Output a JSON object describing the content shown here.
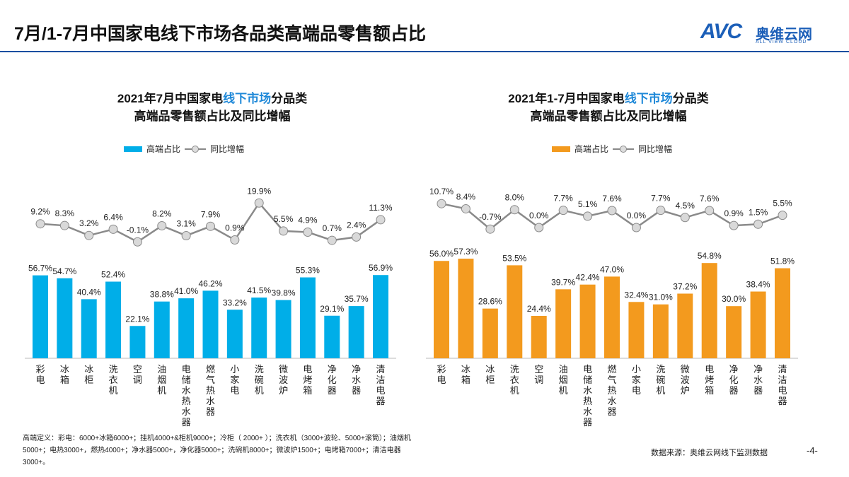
{
  "header": {
    "title": "7月/1-7月中国家电线下市场各品类高端品零售额占比"
  },
  "logo": {
    "mark": "AVC",
    "name_cn": "奥维云网",
    "name_en": "ALL VIEW CLOUD"
  },
  "colors": {
    "left_bar": "#00aee8",
    "right_bar": "#f39a1e",
    "line": "#8a8a8a",
    "marker": "#d9d9d9",
    "title_accent": "#1e88d8",
    "header_rule": "#1a4fa0"
  },
  "chart_data": [
    {
      "type": "bar+line",
      "title_line1_a": "2021年7月中国家电",
      "title_line1_hl": "线下市场",
      "title_line1_b": "分品类",
      "title_line2": "高端品零售额占比及同比增幅",
      "legend": {
        "bar": "高端占比",
        "line": "同比增幅",
        "placement": "top"
      },
      "categories": [
        "彩电",
        "冰箱",
        "冰柜",
        "洗衣机",
        "空调",
        "油烟机",
        "电储水热水器",
        "燃气热水器",
        "小家电",
        "洗碗机",
        "微波炉",
        "电烤箱",
        "净化器",
        "净水器",
        "清洁电器"
      ],
      "series": [
        {
          "name": "高端占比",
          "type": "bar",
          "values": [
            56.7,
            54.7,
            40.4,
            52.4,
            22.1,
            38.8,
            41.0,
            46.2,
            33.2,
            41.5,
            39.8,
            55.3,
            29.1,
            35.7,
            56.9
          ],
          "labels": [
            "56.7%",
            "54.7%",
            "40.4%",
            "52.4%",
            "22.1%",
            "38.8%",
            "41.0%",
            "46.2%",
            "33.2%",
            "41.5%",
            "39.8%",
            "55.3%",
            "29.1%",
            "35.7%",
            "56.9%"
          ]
        },
        {
          "name": "同比增幅",
          "type": "line",
          "values": [
            9.2,
            8.3,
            3.2,
            6.4,
            -0.1,
            8.2,
            3.1,
            7.9,
            0.9,
            19.9,
            5.5,
            4.9,
            0.7,
            2.4,
            11.3
          ],
          "labels": [
            "9.2%",
            "8.3%",
            "3.2%",
            "6.4%",
            "-0.1%",
            "8.2%",
            "3.1%",
            "7.9%",
            "0.9%",
            "19.9%",
            "5.5%",
            "4.9%",
            "0.7%",
            "2.4%",
            "11.3%"
          ]
        }
      ]
    },
    {
      "type": "bar+line",
      "title_line1_a": "2021年1-7月中国家电",
      "title_line1_hl": "线下市场",
      "title_line1_b": "分品类",
      "title_line2": "高端品零售额占比及同比增幅",
      "legend": {
        "bar": "高端占比",
        "line": "同比增幅",
        "placement": "top"
      },
      "categories": [
        "彩电",
        "冰箱",
        "冰柜",
        "洗衣机",
        "空调",
        "油烟机",
        "电储水热水器",
        "燃气热水器",
        "小家电",
        "洗碗机",
        "微波炉",
        "电烤箱",
        "净化器",
        "净水器",
        "清洁电器"
      ],
      "series": [
        {
          "name": "高端占比",
          "type": "bar",
          "values": [
            56.0,
            57.3,
            28.6,
            53.5,
            24.4,
            39.7,
            42.4,
            47.0,
            32.4,
            31.0,
            37.2,
            54.8,
            30.0,
            38.4,
            51.8
          ],
          "labels": [
            "56.0%",
            "57.3%",
            "28.6%",
            "53.5%",
            "24.4%",
            "39.7%",
            "42.4%",
            "47.0%",
            "32.4%",
            "31.0%",
            "37.2%",
            "54.8%",
            "30.0%",
            "38.4%",
            "51.8%"
          ]
        },
        {
          "name": "同比增幅",
          "type": "line",
          "values": [
            10.7,
            8.4,
            -0.7,
            8.0,
            0.0,
            7.7,
            5.1,
            7.6,
            0.0,
            7.7,
            4.5,
            7.6,
            0.9,
            1.5,
            5.5
          ],
          "labels": [
            "10.7%",
            "8.4%",
            "-0.7%",
            "8.0%",
            "0.0%",
            "7.7%",
            "5.1%",
            "7.6%",
            "0.0%",
            "7.7%",
            "4.5%",
            "7.6%",
            "0.9%",
            "1.5%",
            "5.5%"
          ]
        }
      ]
    }
  ],
  "footnote": "高端定义：彩电：6000+冰箱6000+；挂机4000+&柜机9000+；冷柜（ 2000+ ）；洗衣机（3000+波轮、5000+滚筒）；油烟机5000+；电热3000+，燃热4000+；净水器5000+，净化器5000+；洗碗机8000+；微波炉1500+；电烤箱7000+；清洁电器3000+。",
  "source": "数据来源：奥维云网线下监测数据",
  "page_number": "-4-"
}
